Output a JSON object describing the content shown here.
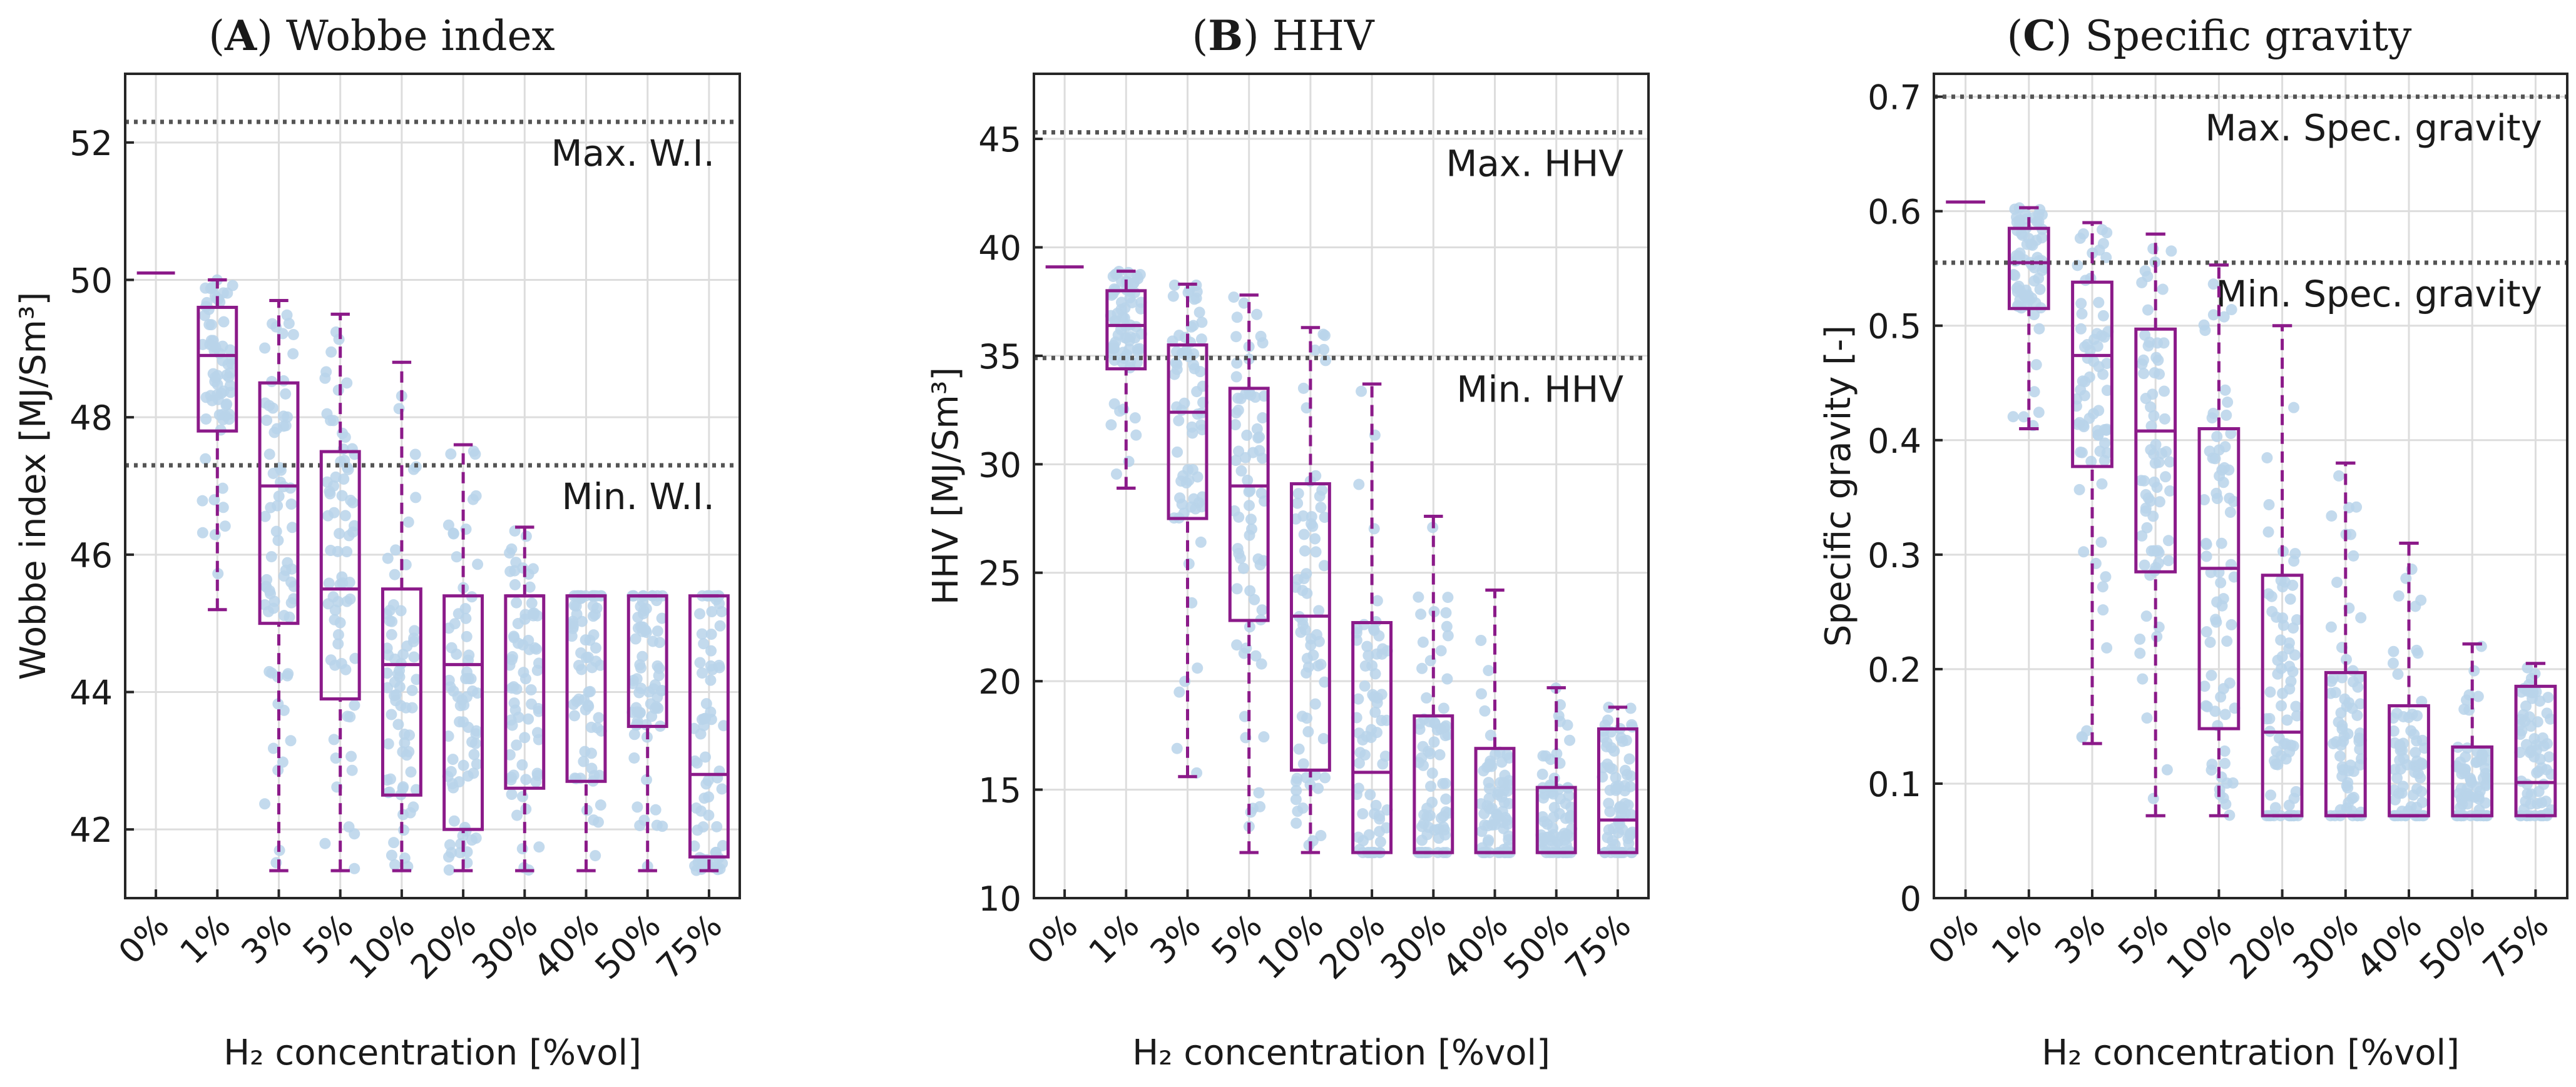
{
  "figure": {
    "x_categories": [
      "0%",
      "1%",
      "3%",
      "5%",
      "10%",
      "20%",
      "30%",
      "40%",
      "50%",
      "75%"
    ],
    "x_axis_label": "H₂ concentration [%vol]",
    "box_color": "#8b1a89",
    "point_color": "#b9d4ea",
    "threshold_color": "#555555"
  },
  "chart_data": [
    {
      "type": "box",
      "panel_letter": "A",
      "title": "Wobbe index",
      "ylabel": "Wobbe index [MJ/Sm³]",
      "ylim": [
        41,
        53
      ],
      "yticks": [
        42,
        44,
        46,
        48,
        50,
        52
      ],
      "categories": [
        "0%",
        "1%",
        "3%",
        "5%",
        "10%",
        "20%",
        "30%",
        "40%",
        "50%",
        "75%"
      ],
      "boxes": [
        {
          "category": "0%",
          "min": 50.1,
          "q1": 50.1,
          "median": 50.1,
          "q3": 50.1,
          "max": 50.1
        },
        {
          "category": "1%",
          "min": 45.2,
          "q1": 47.8,
          "median": 48.9,
          "q3": 49.6,
          "max": 50.0
        },
        {
          "category": "3%",
          "min": 41.4,
          "q1": 45.0,
          "median": 47.0,
          "q3": 48.5,
          "max": 49.7
        },
        {
          "category": "5%",
          "min": 41.4,
          "q1": 43.9,
          "median": 45.5,
          "q3": 47.5,
          "max": 49.5
        },
        {
          "category": "10%",
          "min": 41.4,
          "q1": 42.5,
          "median": 44.4,
          "q3": 45.5,
          "max": 48.8
        },
        {
          "category": "20%",
          "min": 41.4,
          "q1": 42.0,
          "median": 44.4,
          "q3": 45.4,
          "max": 47.6
        },
        {
          "category": "30%",
          "min": 41.4,
          "q1": 42.6,
          "median": 45.4,
          "q3": 45.4,
          "max": 46.4
        },
        {
          "category": "40%",
          "min": 41.4,
          "q1": 42.7,
          "median": 45.4,
          "q3": 45.4,
          "max": 45.4
        },
        {
          "category": "50%",
          "min": 41.4,
          "q1": 43.5,
          "median": 45.4,
          "q3": 45.4,
          "max": 45.4
        },
        {
          "category": "75%",
          "min": 41.4,
          "q1": 41.6,
          "median": 42.8,
          "q3": 45.4,
          "max": 45.4
        }
      ],
      "thresholds": [
        {
          "label": "Max. W.I.",
          "value": 52.3
        },
        {
          "label": "Min. W.I.",
          "value": 47.3
        }
      ]
    },
    {
      "type": "box",
      "panel_letter": "B",
      "title": "HHV",
      "ylabel": "HHV [MJ/Sm³]",
      "ylim": [
        10,
        48
      ],
      "yticks": [
        10,
        15,
        20,
        25,
        30,
        35,
        40,
        45
      ],
      "categories": [
        "0%",
        "1%",
        "3%",
        "5%",
        "10%",
        "20%",
        "30%",
        "40%",
        "50%",
        "75%"
      ],
      "boxes": [
        {
          "category": "0%",
          "min": 39.1,
          "q1": 39.1,
          "median": 39.1,
          "q3": 39.1,
          "max": 39.1
        },
        {
          "category": "1%",
          "min": 28.9,
          "q1": 34.4,
          "median": 36.4,
          "q3": 38.0,
          "max": 38.9
        },
        {
          "category": "3%",
          "min": 15.6,
          "q1": 27.5,
          "median": 32.4,
          "q3": 35.5,
          "max": 38.3
        },
        {
          "category": "5%",
          "min": 12.1,
          "q1": 22.8,
          "median": 29.0,
          "q3": 33.5,
          "max": 37.8
        },
        {
          "category": "10%",
          "min": 12.1,
          "q1": 15.9,
          "median": 23.0,
          "q3": 29.1,
          "max": 36.3
        },
        {
          "category": "20%",
          "min": 12.1,
          "q1": 12.1,
          "median": 15.8,
          "q3": 22.7,
          "max": 33.7
        },
        {
          "category": "30%",
          "min": 12.1,
          "q1": 12.1,
          "median": 12.1,
          "q3": 18.4,
          "max": 27.6
        },
        {
          "category": "40%",
          "min": 12.1,
          "q1": 12.1,
          "median": 12.1,
          "q3": 16.9,
          "max": 24.2
        },
        {
          "category": "50%",
          "min": 12.1,
          "q1": 12.1,
          "median": 12.1,
          "q3": 15.1,
          "max": 19.7
        },
        {
          "category": "75%",
          "min": 12.1,
          "q1": 12.1,
          "median": 13.6,
          "q3": 17.8,
          "max": 18.8
        }
      ],
      "thresholds": [
        {
          "label": "Max. HHV",
          "value": 45.3
        },
        {
          "label": "Min. HHV",
          "value": 34.9
        }
      ]
    },
    {
      "type": "box",
      "panel_letter": "C",
      "title": "Specific gravity",
      "ylabel": "Specific gravity [-]",
      "ylim": [
        0,
        0.72
      ],
      "yticks": [
        0,
        0.1,
        0.2,
        0.3,
        0.4,
        0.5,
        0.6,
        0.7
      ],
      "categories": [
        "0%",
        "1%",
        "3%",
        "5%",
        "10%",
        "20%",
        "30%",
        "40%",
        "50%",
        "75%"
      ],
      "boxes": [
        {
          "category": "0%",
          "min": 0.608,
          "q1": 0.608,
          "median": 0.608,
          "q3": 0.608,
          "max": 0.608
        },
        {
          "category": "1%",
          "min": 0.41,
          "q1": 0.515,
          "median": 0.555,
          "q3": 0.585,
          "max": 0.603
        },
        {
          "category": "3%",
          "min": 0.135,
          "q1": 0.377,
          "median": 0.474,
          "q3": 0.538,
          "max": 0.59
        },
        {
          "category": "5%",
          "min": 0.072,
          "q1": 0.285,
          "median": 0.408,
          "q3": 0.497,
          "max": 0.58
        },
        {
          "category": "10%",
          "min": 0.072,
          "q1": 0.148,
          "median": 0.288,
          "q3": 0.41,
          "max": 0.553
        },
        {
          "category": "20%",
          "min": 0.072,
          "q1": 0.072,
          "median": 0.145,
          "q3": 0.282,
          "max": 0.5
        },
        {
          "category": "30%",
          "min": 0.072,
          "q1": 0.072,
          "median": 0.072,
          "q3": 0.197,
          "max": 0.38
        },
        {
          "category": "40%",
          "min": 0.072,
          "q1": 0.072,
          "median": 0.072,
          "q3": 0.168,
          "max": 0.31
        },
        {
          "category": "50%",
          "min": 0.072,
          "q1": 0.072,
          "median": 0.072,
          "q3": 0.132,
          "max": 0.222
        },
        {
          "category": "75%",
          "min": 0.072,
          "q1": 0.072,
          "median": 0.101,
          "q3": 0.185,
          "max": 0.205
        }
      ],
      "thresholds": [
        {
          "label": "Max. Spec. gravity",
          "value": 0.7
        },
        {
          "label": "Min. Spec. gravity",
          "value": 0.555
        }
      ]
    }
  ]
}
